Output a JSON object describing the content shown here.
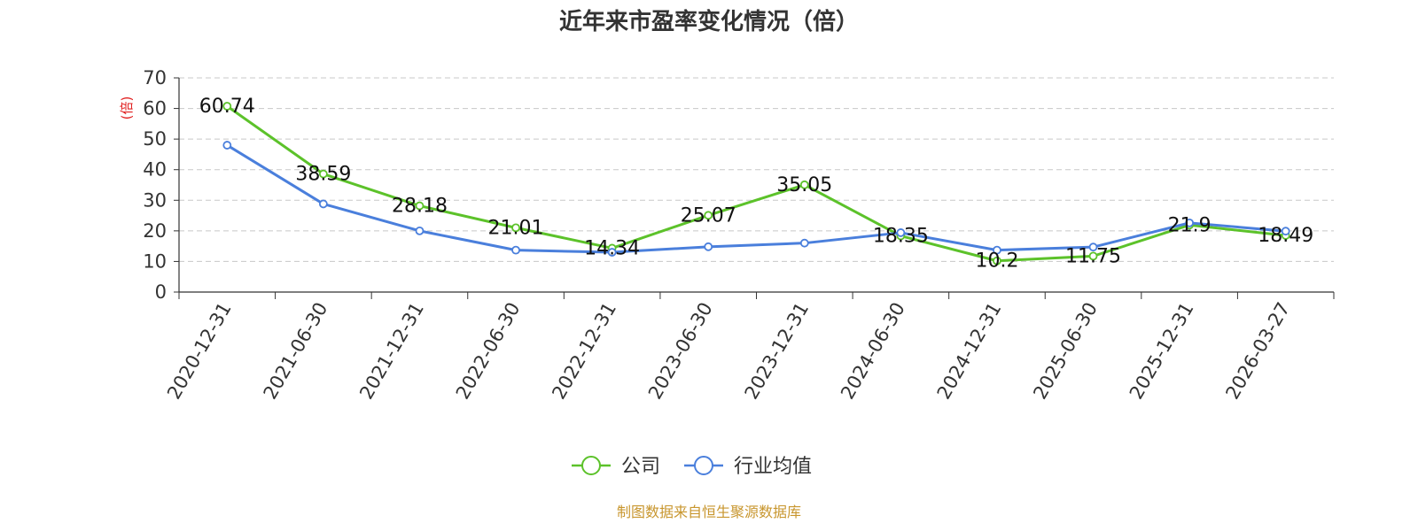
{
  "chart_data": {
    "type": "line",
    "title": "近年来市盈率变化情况（倍）",
    "ylabel": "(倍)",
    "xlabel": "",
    "ylim": [
      0,
      70
    ],
    "yticks": [
      0,
      10,
      20,
      30,
      40,
      50,
      60,
      70
    ],
    "grid": true,
    "legend_position": "bottom-center",
    "categories": [
      "2020-12-31",
      "2021-06-30",
      "2021-12-31",
      "2022-06-30",
      "2022-12-31",
      "2023-06-30",
      "2023-12-31",
      "2024-06-30",
      "2024-12-31",
      "2025-06-30",
      "2025-12-31",
      "2026-03-27"
    ],
    "series": [
      {
        "name": "公司",
        "color": "#5cc22a",
        "values": [
          60.74,
          38.59,
          28.18,
          21.01,
          14.34,
          25.07,
          35.05,
          18.35,
          10.2,
          11.75,
          21.9,
          18.49
        ],
        "labels": [
          "60.74",
          "38.59",
          "28.18",
          "21.01",
          "14.34",
          "25.07",
          "35.05",
          "18.35",
          "10.2",
          "11.75",
          "21.9",
          "18.49"
        ]
      },
      {
        "name": "行业均值",
        "color": "#4a7fdc",
        "values": [
          48.0,
          28.8,
          20.0,
          13.7,
          13.0,
          14.8,
          16.0,
          19.4,
          13.7,
          14.7,
          22.6,
          19.9
        ]
      }
    ],
    "source": "制图数据来自恒生聚源数据库"
  }
}
